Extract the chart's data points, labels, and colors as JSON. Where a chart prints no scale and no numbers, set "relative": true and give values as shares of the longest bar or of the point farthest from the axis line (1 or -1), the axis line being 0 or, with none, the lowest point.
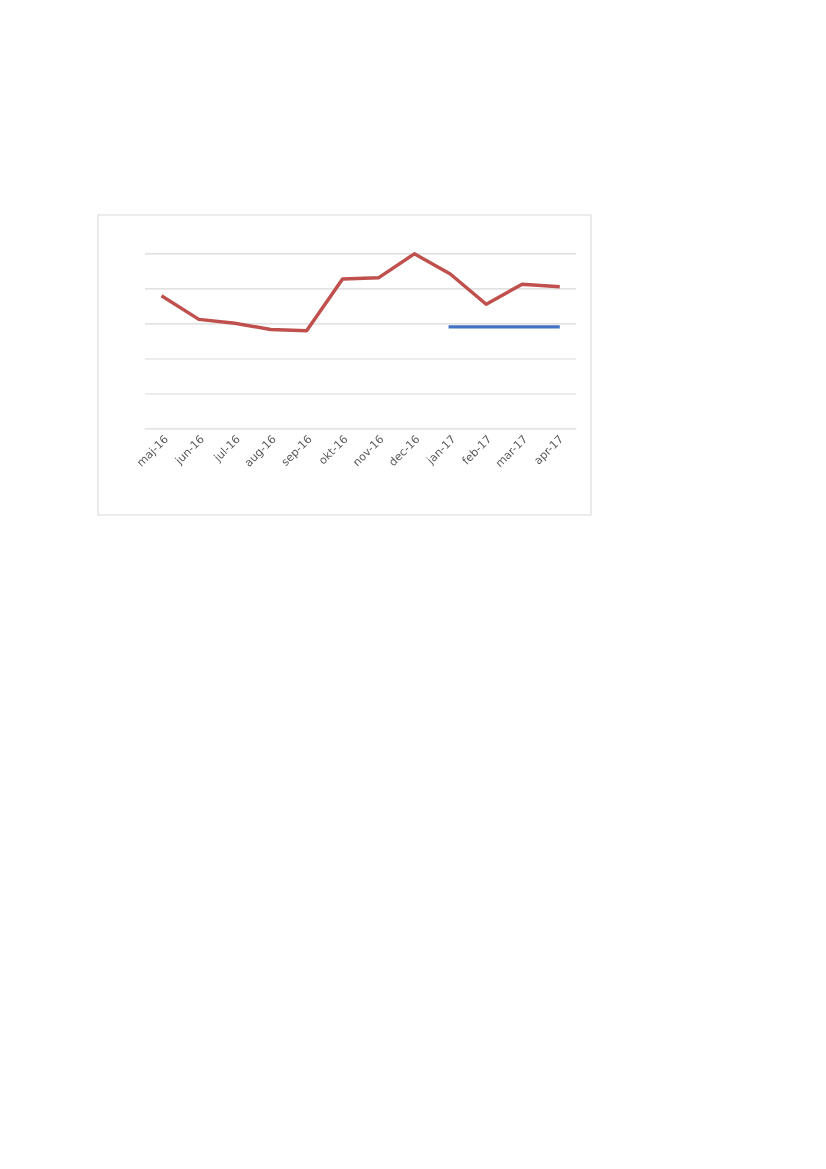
{
  "chart_data": {
    "type": "line",
    "relative": true,
    "grid": "y",
    "marker": "none",
    "line_style": "solid",
    "categories": [
      "maj-16",
      "jun-16",
      "jul-16",
      "aug-16",
      "sep-16",
      "okt-16",
      "nov-16",
      "dec-16",
      "jan-17",
      "feb-17",
      "mar-17",
      "apr-17"
    ],
    "series": [
      {
        "color": "#4472c4",
        "values": [
          null,
          null,
          null,
          null,
          null,
          null,
          null,
          null,
          0.583,
          0.583,
          0.583,
          0.583
        ]
      },
      {
        "color": "#c0504d",
        "values": [
          0.755,
          0.626,
          0.604,
          0.568,
          0.561,
          0.856,
          0.863,
          1.0,
          0.885,
          0.712,
          0.827,
          0.813
        ]
      }
    ]
  }
}
